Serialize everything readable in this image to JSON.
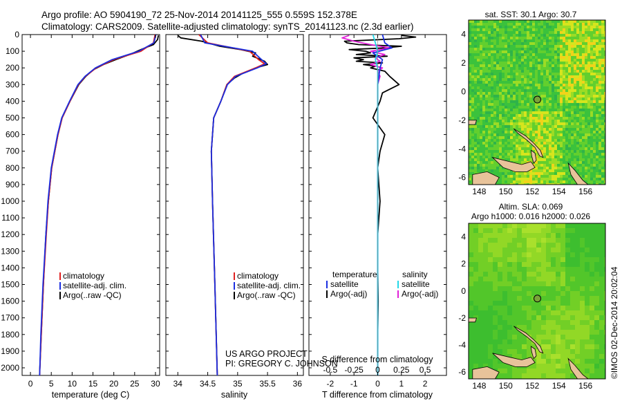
{
  "header": {
    "line1": "Argo profile: AO 5904190_72 25-Nov-2014 20141125_555 0.559S 152.378E",
    "line2": "Climatology: CARS2009. Satellite-adjusted climatology: synTS_20141123.nc (2.3d earlier)"
  },
  "credits": {
    "project": "US ARGO PROJECT",
    "pi": "PI: GREGORY C. JOHNSON",
    "stamp": "©IMOS 02-Dec-2014 20:02:04"
  },
  "colors": {
    "climatology": "#e02020",
    "satellite": "#1a2ee0",
    "argo": "#000000",
    "sat_salinity": "#22d8e8",
    "argo_salinity": "#e020d8",
    "land": "#e8c39a"
  },
  "chart_data": [
    {
      "type": "line",
      "id": "temperature",
      "xlabel": "temperature (deg C)",
      "ylabel": "",
      "xlim": [
        -2,
        31
      ],
      "ylim": [
        2080,
        0
      ],
      "xticks": [
        "0",
        "5",
        "10",
        "15",
        "20",
        "25",
        "30"
      ],
      "yticks": [
        "0",
        "100",
        "200",
        "300",
        "400",
        "500",
        "600",
        "700",
        "800",
        "900",
        "1000",
        "1100",
        "1200",
        "1300",
        "1400",
        "1500",
        "1600",
        "1700",
        "1800",
        "1900",
        "2000"
      ],
      "legend": [
        "climatology",
        "satellite-adj. clim.",
        "Argo(..raw -QC)"
      ],
      "series": [
        {
          "name": "climatology",
          "depth": [
            0,
            50,
            100,
            150,
            200,
            250,
            300,
            400,
            500,
            600,
            800,
            1000,
            1200,
            1500,
            1800,
            2050
          ],
          "values": [
            29.9,
            29.5,
            26.5,
            20,
            15.8,
            13.2,
            11.5,
            9.5,
            7.6,
            6.6,
            5.1,
            4.3,
            3.8,
            3.1,
            2.6,
            2.2
          ]
        },
        {
          "name": "satellite-adj. clim.",
          "depth": [
            0,
            50,
            100,
            150,
            200,
            250,
            300,
            400,
            500,
            600,
            800,
            1000,
            1200,
            1500,
            1800,
            2050
          ],
          "values": [
            30.1,
            29.6,
            26,
            19.6,
            15.6,
            13.1,
            11.4,
            9.4,
            7.5,
            6.5,
            5,
            4.2,
            3.7,
            3,
            2.5,
            2.2
          ]
        },
        {
          "name": "Argo(..raw -QC)",
          "depth": [
            5,
            30,
            60,
            90,
            120,
            150,
            180,
            210,
            250,
            300,
            400,
            500,
            600,
            800,
            1000,
            1200,
            1500,
            1800,
            2040
          ],
          "values": [
            30.7,
            30.5,
            29.5,
            26.5,
            23.8,
            20.5,
            17.5,
            15.2,
            13.3,
            11.6,
            9.5,
            7.6,
            6.6,
            5.1,
            4.3,
            3.7,
            3.1,
            2.6,
            2.2
          ]
        }
      ]
    },
    {
      "type": "line",
      "id": "salinity",
      "xlabel": "salinity",
      "ylabel": "",
      "xlim": [
        33.8,
        36.1
      ],
      "ylim": [
        2080,
        0
      ],
      "xticks": [
        "34",
        "34.5",
        "35",
        "35.5",
        "36"
      ],
      "legend": [
        "climatology",
        "satellite-adj. clim.",
        "Argo(..raw -QC)"
      ],
      "series": [
        {
          "name": "climatology",
          "depth": [
            0,
            50,
            100,
            150,
            175,
            200,
            250,
            300,
            400,
            500,
            700,
            1000,
            1500,
            2050
          ],
          "values": [
            34.35,
            34.5,
            35.2,
            35.35,
            35.45,
            35.3,
            34.95,
            34.82,
            34.72,
            34.6,
            34.56,
            34.58,
            34.62,
            34.66
          ]
        },
        {
          "name": "satellite-adj. clim.",
          "depth": [
            0,
            50,
            100,
            150,
            175,
            200,
            250,
            300,
            400,
            500,
            700,
            1000,
            1500,
            2050
          ],
          "values": [
            34.38,
            34.45,
            35.25,
            35.4,
            35.48,
            35.33,
            34.97,
            34.83,
            34.72,
            34.6,
            34.56,
            34.58,
            34.62,
            34.66
          ]
        },
        {
          "name": "Argo(..raw -QC)",
          "depth": [
            5,
            20,
            40,
            55,
            70,
            90,
            110,
            130,
            160,
            180,
            200,
            230,
            260,
            300,
            400,
            500,
            700,
            1000,
            1500,
            2040
          ],
          "values": [
            34.0,
            34.05,
            34.4,
            34.55,
            34.7,
            35.05,
            35.3,
            35.25,
            35.45,
            35.5,
            35.3,
            35.1,
            34.95,
            34.82,
            34.72,
            34.6,
            34.56,
            34.58,
            34.62,
            34.66
          ]
        }
      ]
    },
    {
      "type": "line",
      "id": "difference",
      "xlabel": "T difference from climatology",
      "xlabel2": "S difference from climatology",
      "xlim": [
        -2.9,
        2.9
      ],
      "ylim": [
        2080,
        0
      ],
      "xticks": [
        "-2",
        "-1",
        "0",
        "1",
        "2"
      ],
      "xticks_s": [
        "-0.5",
        "-0.25",
        "0",
        "0.25",
        "0.5"
      ],
      "legend_t_title": "temperature",
      "legend_s_title": "salinity",
      "legend": [
        "satellite",
        "Argo(-adj)",
        "satellite",
        "Argo(-adj)"
      ],
      "series": [
        {
          "name": "T satellite",
          "depth": [
            0,
            50,
            80,
            110,
            150,
            200,
            300,
            500,
            1000,
            2050
          ],
          "values": [
            0.2,
            0.3,
            0.6,
            -0.2,
            0.2,
            0.1,
            0.0,
            0.0,
            0.0,
            0.0
          ]
        },
        {
          "name": "T Argo(-adj)",
          "depth": [
            5,
            15,
            25,
            40,
            50,
            60,
            70,
            80,
            90,
            100,
            110,
            120,
            130,
            140,
            150,
            160,
            170,
            180,
            190,
            200,
            220,
            250,
            300,
            350,
            400,
            500,
            600,
            700,
            800,
            900,
            1000,
            1200,
            1400,
            1600,
            1800,
            2000,
            2040
          ],
          "values": [
            1.0,
            1.6,
            0.9,
            -1.4,
            -1.3,
            -0.8,
            1.0,
            0.3,
            -1.2,
            -0.5,
            -0.3,
            -0.9,
            0.4,
            -1.0,
            -0.6,
            -0.9,
            0.2,
            -0.6,
            -0.1,
            -0.3,
            0.3,
            0.5,
            0.9,
            0.2,
            0.1,
            -0.2,
            0.3,
            0.1,
            0.0,
            0.05,
            0.1,
            0.0,
            0.0,
            0.02,
            0.0,
            0.0,
            0.0
          ]
        },
        {
          "name": "S satellite",
          "depth": [
            0,
            50,
            100,
            150,
            200,
            300,
            500,
            1000,
            2050
          ],
          "values": [
            -0.2,
            -0.1,
            0.0,
            -0.1,
            0.0,
            0.0,
            0.0,
            0.0,
            0.0
          ]
        },
        {
          "name": "S Argo(-adj)",
          "depth": [
            5,
            20,
            40,
            60,
            80,
            100,
            120,
            140,
            160,
            180,
            200,
            220,
            250,
            300,
            400,
            500,
            700,
            1000,
            1500,
            2040
          ],
          "values": [
            -1.2,
            -1.5,
            -1.0,
            -0.3,
            0.5,
            -0.3,
            0.3,
            -0.1,
            0.1,
            -0.3,
            0.2,
            0.0,
            0.1,
            0.0,
            0.0,
            0.0,
            0.0,
            0.0,
            0.0,
            0.0
          ]
        }
      ]
    },
    {
      "type": "heatmap",
      "id": "sst_map",
      "title": "sat. SST: 30.1  Argo: 30.7",
      "xlim": [
        147.2,
        157.5
      ],
      "ylim": [
        -6.5,
        5
      ],
      "xticks": [
        "148",
        "150",
        "152",
        "154",
        "156"
      ],
      "yticks": [
        "4",
        "2",
        "0",
        "-2",
        "-4",
        "-6"
      ],
      "marker": {
        "lon": 152.378,
        "lat": -0.559
      }
    },
    {
      "type": "heatmap",
      "id": "sla_map",
      "title": "Altim. SLA: 0.069",
      "subtitle": "Argo h1000: 0.016 h2000: 0.026",
      "xlim": [
        147.2,
        157.5
      ],
      "ylim": [
        -6.5,
        5
      ],
      "xticks": [
        "148",
        "150",
        "152",
        "154",
        "156"
      ],
      "yticks": [
        "4",
        "2",
        "0",
        "-2",
        "-4",
        "-6"
      ],
      "marker": {
        "lon": 152.378,
        "lat": -0.559
      }
    }
  ]
}
